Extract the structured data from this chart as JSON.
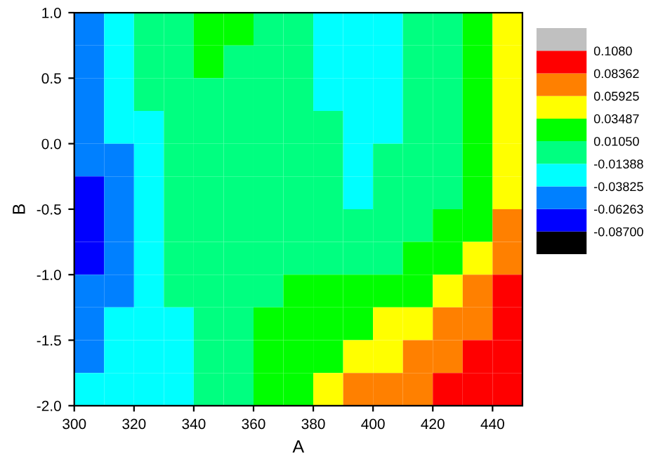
{
  "chart_data": {
    "type": "heatmap",
    "xlabel": "A",
    "ylabel": "B",
    "x": [
      305,
      315,
      325,
      335,
      345,
      355,
      365,
      375,
      385,
      395,
      405,
      415,
      425,
      435,
      445
    ],
    "y": [
      0.875,
      0.625,
      0.375,
      0.125,
      -0.125,
      -0.375,
      -0.625,
      -0.875,
      -1.125,
      -1.375,
      -1.625,
      -1.875
    ],
    "xlim": [
      300,
      450
    ],
    "xticks": [
      300,
      320,
      340,
      360,
      380,
      400,
      420,
      440
    ],
    "ylim": [
      -2.0,
      1.0
    ],
    "yticks": [
      {
        "value": -2,
        "label": "-2.0"
      },
      -1.5,
      {
        "value": -1,
        "label": "-1.0"
      },
      -0.5,
      {
        "value": 0,
        "label": "0.0"
      },
      0.5,
      {
        "value": 1,
        "label": "1.0"
      }
    ],
    "clim": [
      -0.1114,
      0.1324
    ],
    "cticks": [
      {
        "value": -0.087,
        "label": "-0.08700"
      },
      -0.06263,
      -0.03825,
      -0.01388,
      {
        "value": 0.0105,
        "label": "0.01050"
      },
      0.03487,
      0.05925,
      0.08362,
      {
        "value": 0.108,
        "label": "0.1080"
      }
    ],
    "colors": [
      "#000000",
      "#0000ff",
      "#0080ff",
      "#00ffff",
      "#00ff80",
      "#00ff00",
      "#ffff00",
      "#ff8000",
      "#ff0000",
      "#c0c0c0"
    ],
    "cells": [
      [
        -0.05,
        -0.026,
        -0.002,
        -0.002,
        0.023,
        0.023,
        -0.002,
        -0.002,
        -0.026,
        -0.026,
        -0.026,
        -0.002,
        -0.002,
        0.023,
        0.047
      ],
      [
        -0.05,
        -0.026,
        -0.002,
        -0.002,
        0.023,
        -0.002,
        -0.002,
        -0.002,
        -0.026,
        -0.026,
        -0.026,
        -0.002,
        -0.002,
        0.023,
        0.047
      ],
      [
        -0.05,
        -0.026,
        -0.002,
        -0.002,
        -0.002,
        -0.002,
        -0.002,
        -0.002,
        -0.026,
        -0.026,
        -0.026,
        -0.002,
        -0.002,
        0.023,
        0.047
      ],
      [
        -0.05,
        -0.026,
        -0.026,
        -0.002,
        -0.002,
        -0.002,
        -0.002,
        -0.002,
        -0.002,
        -0.026,
        -0.026,
        -0.002,
        -0.002,
        0.023,
        0.047
      ],
      [
        -0.05,
        -0.05,
        -0.026,
        -0.002,
        -0.002,
        -0.002,
        -0.002,
        -0.002,
        -0.002,
        -0.026,
        -0.002,
        -0.002,
        -0.002,
        0.023,
        0.047
      ],
      [
        -0.075,
        -0.05,
        -0.026,
        -0.002,
        -0.002,
        -0.002,
        -0.002,
        -0.002,
        -0.002,
        -0.026,
        -0.002,
        -0.002,
        -0.002,
        0.023,
        0.047
      ],
      [
        -0.075,
        -0.05,
        -0.026,
        -0.002,
        -0.002,
        -0.002,
        -0.002,
        -0.002,
        -0.002,
        -0.002,
        -0.002,
        -0.002,
        0.023,
        0.023,
        0.071
      ],
      [
        -0.075,
        -0.05,
        -0.026,
        -0.002,
        -0.002,
        -0.002,
        -0.002,
        -0.002,
        -0.002,
        -0.002,
        -0.002,
        0.023,
        0.023,
        0.047,
        0.071
      ],
      [
        -0.05,
        -0.05,
        -0.026,
        -0.002,
        -0.002,
        -0.002,
        -0.002,
        0.023,
        0.023,
        0.023,
        0.023,
        0.023,
        0.047,
        0.071,
        0.096
      ],
      [
        -0.05,
        -0.026,
        -0.026,
        -0.026,
        -0.002,
        -0.002,
        0.023,
        0.023,
        0.023,
        0.023,
        0.047,
        0.047,
        0.071,
        0.071,
        0.096
      ],
      [
        -0.05,
        -0.026,
        -0.026,
        -0.026,
        -0.002,
        -0.002,
        0.023,
        0.023,
        0.023,
        0.047,
        0.047,
        0.071,
        0.071,
        0.096,
        0.096
      ],
      [
        -0.026,
        -0.026,
        -0.026,
        -0.026,
        -0.002,
        -0.002,
        0.023,
        0.023,
        0.047,
        0.071,
        0.071,
        0.071,
        0.096,
        0.096,
        0.096
      ]
    ]
  }
}
